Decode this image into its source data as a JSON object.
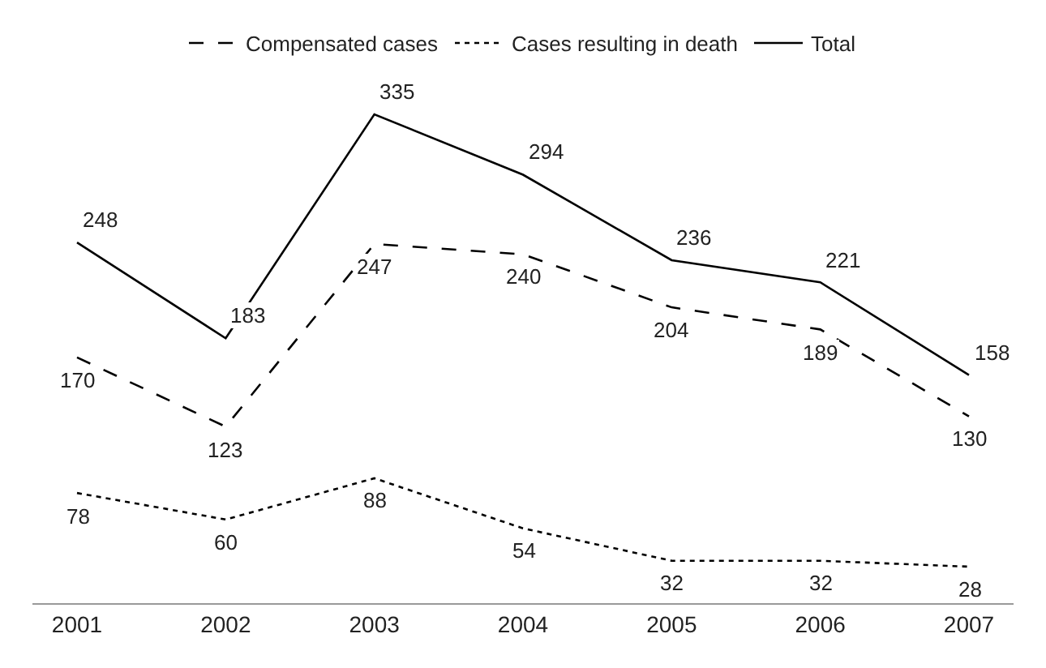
{
  "chart_data": {
    "type": "line",
    "categories": [
      "2001",
      "2002",
      "2003",
      "2004",
      "2005",
      "2006",
      "2007"
    ],
    "series": [
      {
        "name": "Compensated cases",
        "color": "#000000",
        "line_style": "dashed",
        "values": [
          170,
          123,
          247,
          240,
          204,
          189,
          130
        ]
      },
      {
        "name": "Cases resulting in death",
        "color": "#000000",
        "line_style": "dotted",
        "values": [
          78,
          60,
          88,
          54,
          32,
          32,
          28
        ]
      },
      {
        "name": "Total",
        "color": "#000000",
        "line_style": "solid",
        "values": [
          248,
          183,
          335,
          294,
          236,
          221,
          158
        ]
      }
    ],
    "data_labels": true,
    "marker": "none",
    "legend": "top"
  }
}
